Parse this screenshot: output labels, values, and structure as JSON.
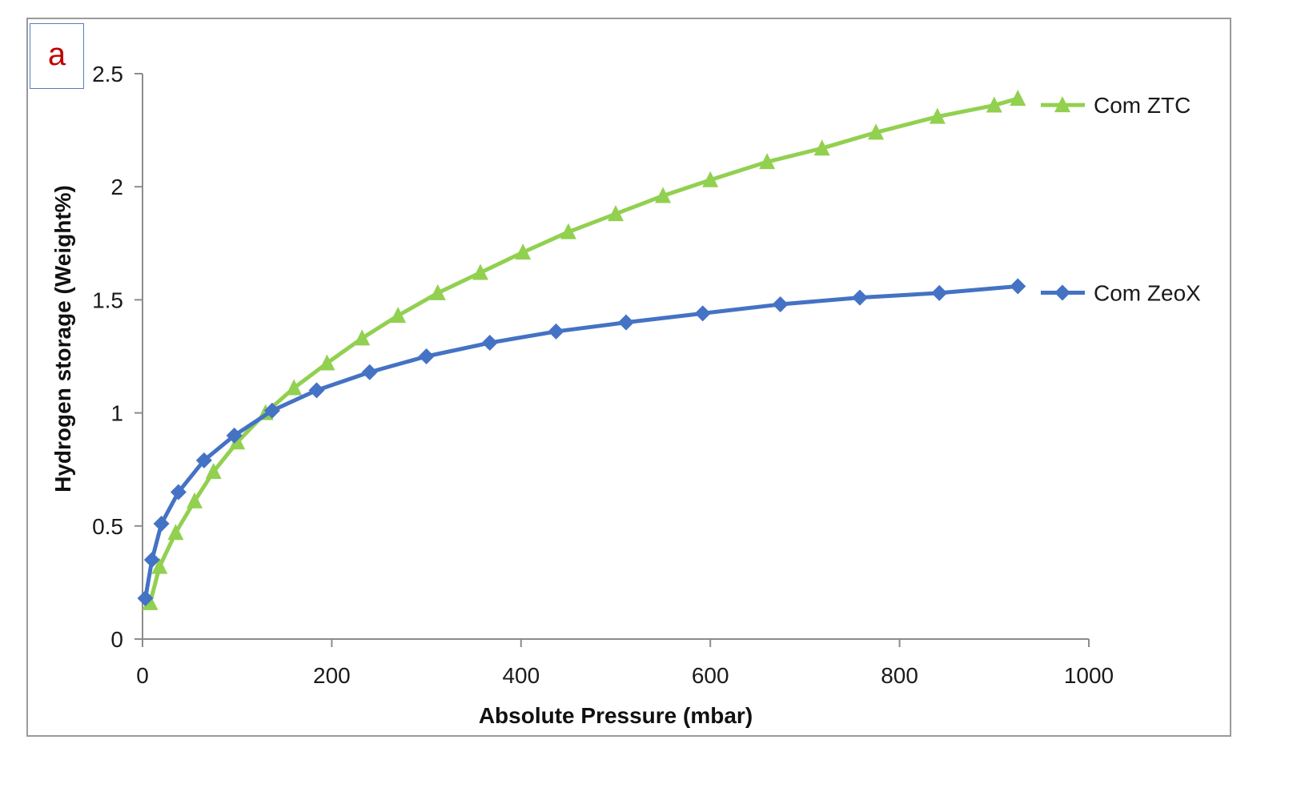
{
  "panel_label": "a",
  "chart_data": {
    "type": "line",
    "title": "",
    "xlabel": "Absolute Pressure (mbar)",
    "ylabel": "Hydrogen storage (Weight%)",
    "xlim": [
      0,
      1000
    ],
    "ylim": [
      0,
      2.5
    ],
    "xticks": [
      0,
      200,
      400,
      600,
      800,
      1000
    ],
    "yticks": [
      0,
      0.5,
      1,
      1.5,
      2,
      2.5
    ],
    "xtick_labels": [
      "0",
      "200",
      "400",
      "600",
      "800",
      "1000"
    ],
    "ytick_labels": [
      "0",
      "0.5",
      "1",
      "1.5",
      "2",
      "2.5"
    ],
    "grid": false,
    "legend_placement": "right, at line ends",
    "series": [
      {
        "name": "Com ZTC",
        "color": "#92d050",
        "marker": "triangle",
        "x": [
          8,
          18,
          35,
          55,
          75,
          100,
          130,
          160,
          195,
          232,
          270,
          312,
          357,
          402,
          450,
          500,
          550,
          600,
          660,
          718,
          775,
          840,
          900,
          925
        ],
        "y": [
          0.16,
          0.32,
          0.47,
          0.61,
          0.74,
          0.87,
          1.0,
          1.11,
          1.22,
          1.33,
          1.43,
          1.53,
          1.62,
          1.71,
          1.8,
          1.88,
          1.96,
          2.03,
          2.11,
          2.17,
          2.24,
          2.31,
          2.36,
          2.39
        ]
      },
      {
        "name": "Com ZeoX",
        "color": "#4472c4",
        "marker": "diamond",
        "x": [
          3,
          10,
          20,
          38,
          65,
          97,
          137,
          184,
          240,
          300,
          367,
          437,
          511,
          592,
          674,
          758,
          842,
          925
        ],
        "y": [
          0.18,
          0.35,
          0.51,
          0.65,
          0.79,
          0.9,
          1.01,
          1.1,
          1.18,
          1.25,
          1.31,
          1.36,
          1.4,
          1.44,
          1.48,
          1.51,
          1.53,
          1.56
        ]
      }
    ]
  }
}
